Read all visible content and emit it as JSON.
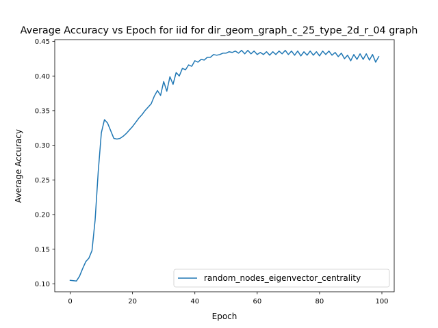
{
  "chart_data": {
    "type": "line",
    "title": "Average Accuracy vs Epoch for iid for dir_geom_graph_c_25_type_2d_r_04 graph",
    "xlabel": "Epoch",
    "ylabel": "Average Accuracy",
    "xlim": [
      -4.95,
      103.95
    ],
    "ylim": [
      0.0885,
      0.4525
    ],
    "xticks": [
      0,
      20,
      40,
      60,
      80,
      100
    ],
    "xtick_labels": [
      "0",
      "20",
      "40",
      "60",
      "80",
      "100"
    ],
    "yticks": [
      0.1,
      0.15,
      0.2,
      0.25,
      0.3,
      0.35,
      0.4,
      0.45
    ],
    "ytick_labels": [
      "0.10",
      "0.15",
      "0.20",
      "0.25",
      "0.30",
      "0.35",
      "0.40",
      "0.45"
    ],
    "grid": false,
    "legend_position": "lower-right",
    "series": [
      {
        "name": "random_nodes_eigenvector_centrality",
        "color": "#1f77b4",
        "x": [
          0,
          1,
          2,
          3,
          4,
          5,
          6,
          7,
          8,
          9,
          10,
          11,
          12,
          13,
          14,
          15,
          16,
          17,
          18,
          19,
          20,
          21,
          22,
          23,
          24,
          25,
          26,
          27,
          28,
          29,
          30,
          31,
          32,
          33,
          34,
          35,
          36,
          37,
          38,
          39,
          40,
          41,
          42,
          43,
          44,
          45,
          46,
          47,
          48,
          49,
          50,
          51,
          52,
          53,
          54,
          55,
          56,
          57,
          58,
          59,
          60,
          61,
          62,
          63,
          64,
          65,
          66,
          67,
          68,
          69,
          70,
          71,
          72,
          73,
          74,
          75,
          76,
          77,
          78,
          79,
          80,
          81,
          82,
          83,
          84,
          85,
          86,
          87,
          88,
          89,
          90,
          91,
          92,
          93,
          94,
          95,
          96,
          97,
          98,
          99
        ],
        "y": [
          0.105,
          0.1045,
          0.104,
          0.111,
          0.122,
          0.132,
          0.137,
          0.148,
          0.192,
          0.262,
          0.318,
          0.337,
          0.332,
          0.321,
          0.31,
          0.309,
          0.31,
          0.313,
          0.317,
          0.322,
          0.327,
          0.333,
          0.339,
          0.344,
          0.35,
          0.355,
          0.36,
          0.371,
          0.379,
          0.372,
          0.392,
          0.378,
          0.399,
          0.388,
          0.405,
          0.4,
          0.411,
          0.409,
          0.416,
          0.414,
          0.422,
          0.42,
          0.424,
          0.423,
          0.427,
          0.427,
          0.431,
          0.43,
          0.431,
          0.433,
          0.433,
          0.435,
          0.434,
          0.436,
          0.433,
          0.437,
          0.432,
          0.437,
          0.432,
          0.436,
          0.431,
          0.434,
          0.431,
          0.435,
          0.43,
          0.435,
          0.431,
          0.436,
          0.432,
          0.437,
          0.431,
          0.436,
          0.43,
          0.436,
          0.429,
          0.435,
          0.43,
          0.436,
          0.43,
          0.435,
          0.429,
          0.436,
          0.431,
          0.436,
          0.43,
          0.434,
          0.428,
          0.433,
          0.425,
          0.43,
          0.422,
          0.431,
          0.424,
          0.432,
          0.424,
          0.432,
          0.423,
          0.431,
          0.42,
          0.428
        ]
      }
    ]
  }
}
